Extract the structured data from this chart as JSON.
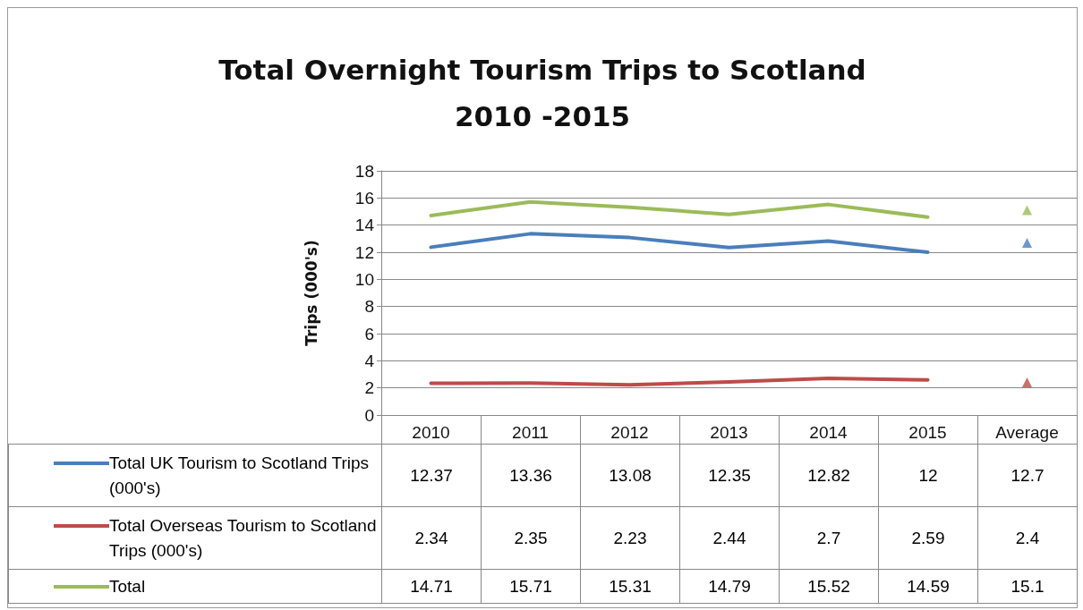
{
  "chart_data": {
    "type": "line",
    "title": "Total Overnight Tourism Trips to Scotland\n2010 -2015",
    "ylabel": "Trips (000's)",
    "categories": [
      "2010",
      "2011",
      "2012",
      "2013",
      "2014",
      "2015",
      "Average"
    ],
    "series": [
      {
        "name": "Total UK Tourism to Scotland Trips (000's)",
        "color": "#4a7ebb",
        "values": [
          12.37,
          13.36,
          13.08,
          12.35,
          12.82,
          12,
          null
        ],
        "value_labels": [
          "12.37",
          "13.36",
          "13.08",
          "12.35",
          "12.82",
          "12",
          "12.7"
        ]
      },
      {
        "name": "Total Overseas Tourism to Scotland Trips (000's)",
        "color": "#be4b48",
        "values": [
          2.34,
          2.35,
          2.23,
          2.44,
          2.7,
          2.59,
          null
        ],
        "value_labels": [
          "2.34",
          "2.35",
          "2.23",
          "2.44",
          "2.7",
          "2.59",
          "2.4"
        ]
      },
      {
        "name": "Total",
        "color": "#9bbb59",
        "values": [
          14.71,
          15.71,
          15.31,
          14.79,
          15.52,
          14.59,
          null
        ],
        "value_labels": [
          "14.71",
          "15.71",
          "15.31",
          "14.79",
          "15.52",
          "14.59",
          "15.1"
        ]
      },
      {
        "type": "scatter",
        "color": "#4a7ebb",
        "x": [
          "Average"
        ],
        "values": [
          12.7
        ],
        "marker": "triangle"
      },
      {
        "type": "scatter",
        "color": "#be4b48",
        "x": [
          "Average"
        ],
        "values": [
          2.4
        ],
        "marker": "triangle"
      },
      {
        "type": "scatter",
        "color": "#9bbb59",
        "x": [
          "Average"
        ],
        "values": [
          15.1
        ],
        "marker": "triangle"
      }
    ],
    "ylim": [
      0,
      18
    ],
    "yticks": [
      0,
      2,
      4,
      6,
      8,
      10,
      12,
      14,
      16,
      18
    ],
    "grid": "y",
    "marker": "none",
    "line_style": "solid",
    "legend": "bottom"
  }
}
